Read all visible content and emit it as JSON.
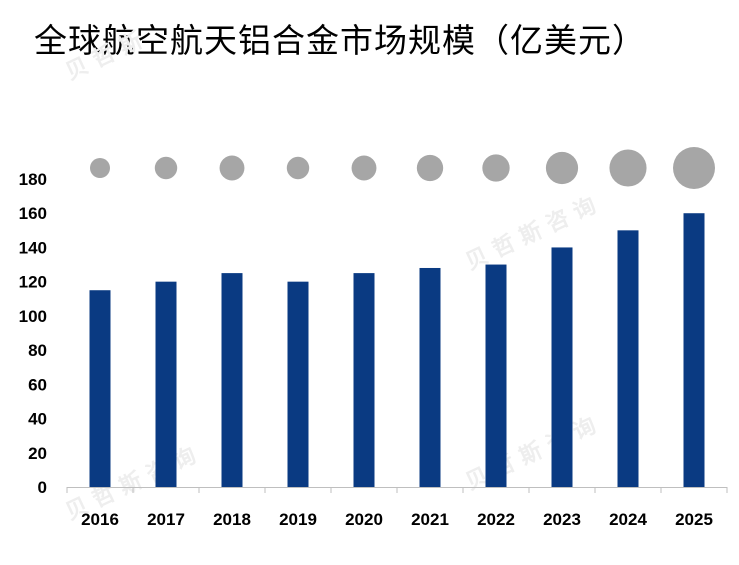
{
  "title": "全球航空航天铝合金市场规模（亿美元）",
  "chart_data": {
    "type": "bar",
    "title": "全球航空航天铝合金市场规模（亿美元）",
    "categories": [
      "2016",
      "2017",
      "2018",
      "2019",
      "2020",
      "2021",
      "2022",
      "2023",
      "2024",
      "2025"
    ],
    "values": [
      115,
      120,
      125,
      120,
      125,
      128,
      130,
      140,
      150,
      160
    ],
    "ylim": [
      0,
      180
    ],
    "yticks": [
      0,
      20,
      40,
      60,
      80,
      100,
      120,
      140,
      160,
      180
    ],
    "xlabel": "",
    "ylabel": "",
    "grid": false,
    "colors": {
      "bar": "#0a3a82",
      "bubble": "#a6a6a6",
      "axis": "#bfbfbf"
    }
  }
}
